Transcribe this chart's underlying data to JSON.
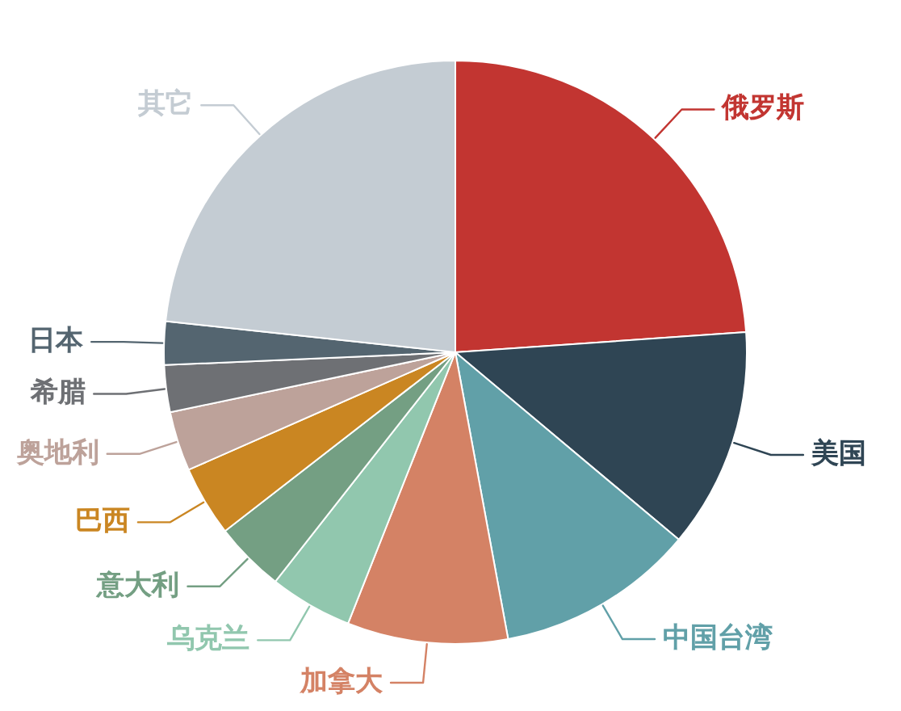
{
  "chart_data": {
    "type": "pie",
    "categories": [
      "俄罗斯",
      "美国",
      "中国台湾",
      "加拿大",
      "乌克兰",
      "意大利",
      "巴西",
      "奥地利",
      "希腊",
      "日本",
      "其它"
    ],
    "values": [
      23.9,
      12.2,
      11.0,
      8.9,
      4.6,
      3.9,
      3.9,
      3.3,
      2.6,
      2.4,
      23.3
    ],
    "colors": [
      "#c23531",
      "#2f4554",
      "#61a0a8",
      "#d48265",
      "#91c7ae",
      "#749f83",
      "#ca8622",
      "#bda29a",
      "#6e7074",
      "#546570",
      "#c4ccd3"
    ]
  }
}
